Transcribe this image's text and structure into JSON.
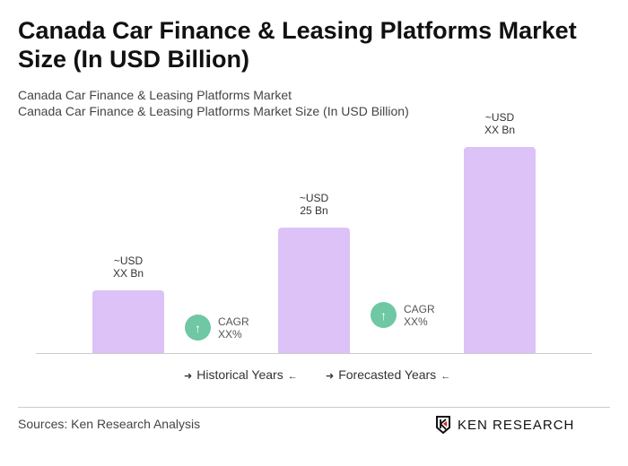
{
  "title": "Canada Car Finance & Leasing Platforms Market Size (In USD Billion)",
  "subtitle1": "Canada Car Finance & Leasing Platforms Market",
  "subtitle2": "Canada Car Finance & Leasing Platforms Market Size (In USD Billion)",
  "chart_data": {
    "type": "bar",
    "values": [
      12.5,
      25,
      41
    ],
    "labels": [
      {
        "l1": "~USD",
        "l2": "XX Bn"
      },
      {
        "l1": "~USD",
        "l2": "25 Bn"
      },
      {
        "l1": "~USD",
        "l2": "XX Bn"
      }
    ],
    "bar_color": "#dcc2f7",
    "cagr": [
      {
        "l1": "CAGR",
        "l2": "XX%"
      },
      {
        "l1": "CAGR",
        "l2": "XX%"
      }
    ],
    "cagr_icon": "arrow-up-icon",
    "cagr_color": "#6fc7a3",
    "legend": [
      "Historical Years",
      "Forecasted Years"
    ]
  },
  "sources": "Sources: Ken Research Analysis",
  "logo": "KEN RESEARCH"
}
